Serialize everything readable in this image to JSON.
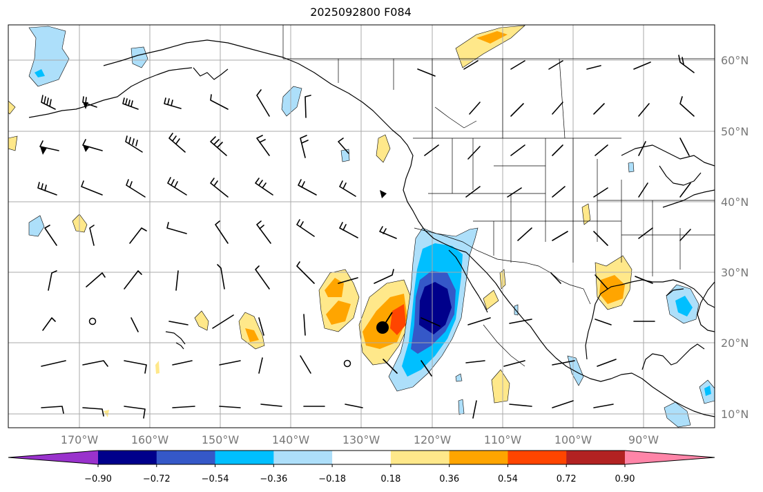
{
  "title": "2025092800 F084",
  "lat_labels": [
    "60°N",
    "50°N",
    "40°N",
    "30°N",
    "20°N",
    "10°N"
  ],
  "lon_labels": [
    "170°W",
    "160°W",
    "150°W",
    "140°W",
    "130°W",
    "120°W",
    "110°W",
    "100°W",
    "90°W"
  ],
  "colorbar": {
    "ticks": [
      "−0.90",
      "−0.72",
      "−0.54",
      "−0.36",
      "−0.18",
      "0.18",
      "0.36",
      "0.54",
      "0.72",
      "0.90"
    ],
    "colors": [
      "#9932CC",
      "#00008B",
      "#3558C8",
      "#00BFFF",
      "#ADDFFA",
      "#FFFFFF",
      "#FFE88A",
      "#FFA500",
      "#FF4500",
      "#B22222",
      "#FF85A8"
    ]
  }
}
